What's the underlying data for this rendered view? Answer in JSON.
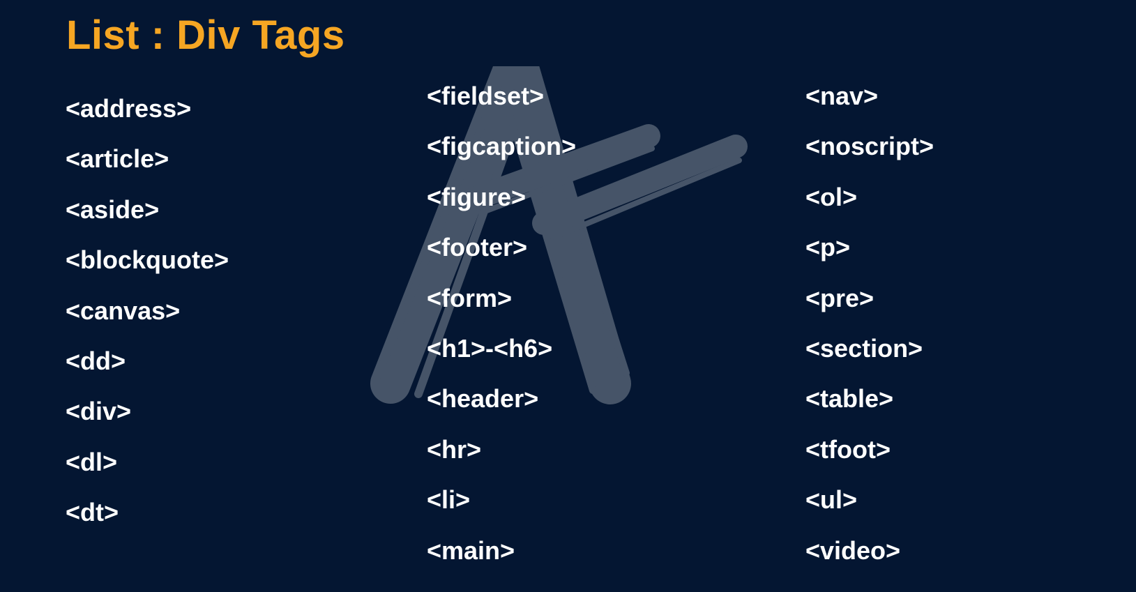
{
  "slide": {
    "title": "List : Div Tags",
    "colors": {
      "background": "#041632",
      "title": "#f6a623",
      "text": "#ffffff",
      "watermark": "#4a586b"
    },
    "watermark": {
      "icon": "brush-letter-a-logo"
    },
    "columns": [
      [
        "<address>",
        "<article>",
        "<aside>",
        "<blockquote>",
        "<canvas>",
        "<dd>",
        "<div>",
        "<dl>",
        "<dt>"
      ],
      [
        "<fieldset>",
        "<figcaption>",
        "<figure>",
        "<footer>",
        "<form>",
        "<h1>-<h6>",
        "<header>",
        "<hr>",
        "<li>",
        "<main>"
      ],
      [
        "<nav>",
        "<noscript>",
        "<ol>",
        "<p>",
        "<pre>",
        "<section>",
        "<table>",
        "<tfoot>",
        "<ul>",
        "<video>"
      ]
    ]
  }
}
